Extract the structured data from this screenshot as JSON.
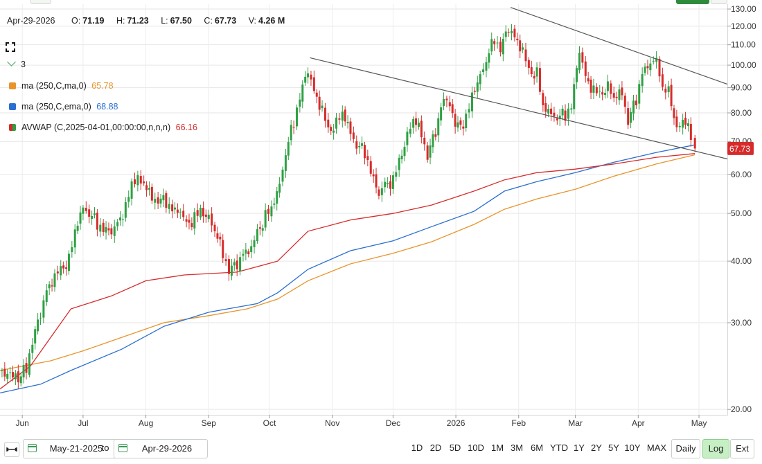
{
  "ohlc": {
    "date": "Apr-29-2026",
    "open_label": "O:",
    "open": "71.19",
    "high_label": "H:",
    "high": "71.23",
    "low_label": "L:",
    "low": "67.50",
    "close_label": "C:",
    "close": "67.73",
    "volume_label": "V:",
    "volume": "4.26 M"
  },
  "collapse_count": "3",
  "legend": [
    {
      "label": "ma (250,C,ma,0)",
      "value": "65.78",
      "color": "#e8942a"
    },
    {
      "label": "ma (250,C,ema,0)",
      "value": "68.88",
      "color": "#2a6fd1"
    },
    {
      "label": "AVWAP (C,2025-04-01,00:00:00,n,n,n)",
      "value": "66.16",
      "color": "#d62b2b",
      "color2": "#2ea043"
    }
  ],
  "price_tag": "67.73",
  "bottom": {
    "from_date": "May-21-2025",
    "to_label": "to",
    "to_date": "Apr-29-2026",
    "ranges": [
      "1D",
      "2D",
      "5D",
      "10D",
      "1M",
      "3M",
      "6M",
      "YTD",
      "1Y",
      "2Y",
      "5Y",
      "10Y",
      "MAX"
    ],
    "interval": "Daily",
    "log_label": "Log",
    "ext_label": "Ext"
  },
  "chart_data": {
    "type": "candlestick",
    "scale": "log",
    "ylim": [
      19.5,
      133
    ],
    "y_ticks": [
      "130.00",
      "120.00",
      "110.00",
      "100.00",
      "90.00",
      "80.00",
      "70.00",
      "60.00",
      "50.00",
      "40.00",
      "30.00",
      "20.00"
    ],
    "x_ticks": [
      "Jun",
      "Jul",
      "Aug",
      "Sep",
      "Oct",
      "Nov",
      "Dec",
      "2026",
      "Feb",
      "Mar",
      "Apr",
      "May"
    ],
    "x_range": [
      "2025-05-21",
      "2026-05-15"
    ],
    "up_color": "#2ea043",
    "down_color": "#d62b2b",
    "closes": [
      [
        "2025-05-22",
        24.0
      ],
      [
        "2025-05-26",
        24.3
      ],
      [
        "2025-05-30",
        23.5
      ],
      [
        "2025-06-03",
        24.5
      ],
      [
        "2025-06-06",
        27.5
      ],
      [
        "2025-06-10",
        30.5
      ],
      [
        "2025-06-13",
        34.0
      ],
      [
        "2025-06-17",
        36.5
      ],
      [
        "2025-06-20",
        38.0
      ],
      [
        "2025-06-24",
        41.0
      ],
      [
        "2025-06-27",
        47.0
      ],
      [
        "2025-07-01",
        53.0
      ],
      [
        "2025-07-04",
        51.0
      ],
      [
        "2025-07-08",
        47.5
      ],
      [
        "2025-07-11",
        46.0
      ],
      [
        "2025-07-15",
        44.5
      ],
      [
        "2025-07-18",
        46.5
      ],
      [
        "2025-07-22",
        51.0
      ],
      [
        "2025-07-25",
        57.0
      ],
      [
        "2025-07-28",
        60.0
      ],
      [
        "2025-07-31",
        59.0
      ],
      [
        "2025-08-04",
        55.0
      ],
      [
        "2025-08-07",
        54.0
      ],
      [
        "2025-08-11",
        52.0
      ],
      [
        "2025-08-14",
        50.0
      ],
      [
        "2025-08-18",
        49.0
      ],
      [
        "2025-08-21",
        46.5
      ],
      [
        "2025-08-25",
        49.0
      ],
      [
        "2025-08-28",
        51.0
      ],
      [
        "2025-09-01",
        50.5
      ],
      [
        "2025-09-04",
        47.5
      ],
      [
        "2025-09-08",
        42.0
      ],
      [
        "2025-09-11",
        38.5
      ],
      [
        "2025-09-15",
        38.5
      ],
      [
        "2025-09-18",
        40.5
      ],
      [
        "2025-09-22",
        41.5
      ],
      [
        "2025-09-25",
        45.0
      ],
      [
        "2025-09-29",
        50.0
      ],
      [
        "2025-10-02",
        52.0
      ],
      [
        "2025-10-06",
        59.0
      ],
      [
        "2025-10-09",
        68.0
      ],
      [
        "2025-10-13",
        77.0
      ],
      [
        "2025-10-16",
        86.0
      ],
      [
        "2025-10-20",
        95.0
      ],
      [
        "2025-10-23",
        86.0
      ],
      [
        "2025-10-27",
        80.0
      ],
      [
        "2025-10-30",
        73.0
      ],
      [
        "2025-11-03",
        78.0
      ],
      [
        "2025-11-06",
        82.0
      ],
      [
        "2025-11-10",
        75.0
      ],
      [
        "2025-11-13",
        70.0
      ],
      [
        "2025-11-17",
        66.0
      ],
      [
        "2025-11-20",
        60.0
      ],
      [
        "2025-11-24",
        53.0
      ],
      [
        "2025-11-27",
        56.0
      ],
      [
        "2025-12-01",
        58.0
      ],
      [
        "2025-12-04",
        64.0
      ],
      [
        "2025-12-08",
        74.0
      ],
      [
        "2025-12-11",
        80.0
      ],
      [
        "2025-12-15",
        74.0
      ],
      [
        "2025-12-18",
        66.0
      ],
      [
        "2025-12-22",
        72.0
      ],
      [
        "2025-12-26",
        84.0
      ],
      [
        "2025-12-29",
        80.0
      ],
      [
        "2026-01-02",
        74.0
      ],
      [
        "2026-01-06",
        78.0
      ],
      [
        "2026-01-09",
        88.0
      ],
      [
        "2026-01-13",
        98.0
      ],
      [
        "2026-01-16",
        105.0
      ],
      [
        "2026-01-20",
        114.0
      ],
      [
        "2026-01-23",
        108.0
      ],
      [
        "2026-01-27",
        116.0
      ],
      [
        "2026-01-30",
        111.0
      ],
      [
        "2026-02-03",
        105.0
      ],
      [
        "2026-02-06",
        96.0
      ],
      [
        "2026-02-10",
        98.0
      ],
      [
        "2026-02-13",
        84.0
      ],
      [
        "2026-02-17",
        82.0
      ],
      [
        "2026-02-20",
        80.0
      ],
      [
        "2026-02-24",
        79.0
      ],
      [
        "2026-02-27",
        82.0
      ],
      [
        "2026-03-03",
        104.0
      ],
      [
        "2026-03-06",
        92.0
      ],
      [
        "2026-03-10",
        88.0
      ],
      [
        "2026-03-13",
        87.0
      ],
      [
        "2026-03-17",
        93.0
      ],
      [
        "2026-03-20",
        88.0
      ],
      [
        "2026-03-24",
        90.0
      ],
      [
        "2026-03-27",
        78.0
      ],
      [
        "2026-03-31",
        84.0
      ],
      [
        "2026-04-03",
        95.0
      ],
      [
        "2026-04-07",
        98.0
      ],
      [
        "2026-04-10",
        100.0
      ],
      [
        "2026-04-13",
        88.0
      ],
      [
        "2026-04-16",
        90.0
      ],
      [
        "2026-04-20",
        76.0
      ],
      [
        "2026-04-23",
        80.0
      ],
      [
        "2026-04-27",
        73.0
      ],
      [
        "2026-04-29",
        67.73
      ]
    ],
    "series": [
      {
        "name": "ma (250,C,ma,0)",
        "color": "#e8942a",
        "values": [
          [
            "2025-05-21",
            24.0
          ],
          [
            "2025-06-15",
            25.1
          ],
          [
            "2025-07-01",
            26.3
          ],
          [
            "2025-07-20",
            28.0
          ],
          [
            "2025-08-10",
            30.0
          ],
          [
            "2025-09-01",
            31.0
          ],
          [
            "2025-09-20",
            32.0
          ],
          [
            "2025-10-05",
            33.5
          ],
          [
            "2025-10-20",
            36.5
          ],
          [
            "2025-11-10",
            39.5
          ],
          [
            "2025-12-01",
            41.5
          ],
          [
            "2025-12-20",
            43.8
          ],
          [
            "2026-01-10",
            47.5
          ],
          [
            "2026-01-25",
            51.0
          ],
          [
            "2026-02-10",
            53.5
          ],
          [
            "2026-03-01",
            56.0
          ],
          [
            "2026-03-20",
            59.5
          ],
          [
            "2026-04-10",
            63.0
          ],
          [
            "2026-04-29",
            65.78
          ]
        ]
      },
      {
        "name": "ma (250,C,ema,0)",
        "color": "#2a6fd1",
        "values": [
          [
            "2025-05-21",
            21.6
          ],
          [
            "2025-06-10",
            22.5
          ],
          [
            "2025-06-25",
            24.0
          ],
          [
            "2025-07-20",
            26.5
          ],
          [
            "2025-08-10",
            29.5
          ],
          [
            "2025-09-01",
            31.5
          ],
          [
            "2025-09-25",
            32.8
          ],
          [
            "2025-10-05",
            34.5
          ],
          [
            "2025-10-20",
            38.5
          ],
          [
            "2025-11-10",
            42.0
          ],
          [
            "2025-12-01",
            44.0
          ],
          [
            "2025-12-20",
            47.0
          ],
          [
            "2026-01-10",
            50.5
          ],
          [
            "2026-01-25",
            55.5
          ],
          [
            "2026-02-10",
            58.0
          ],
          [
            "2026-03-01",
            60.5
          ],
          [
            "2026-03-20",
            63.5
          ],
          [
            "2026-04-10",
            66.5
          ],
          [
            "2026-04-29",
            68.88
          ]
        ]
      },
      {
        "name": "AVWAP (C,2025-04-01,00:00:00,n,n,n)",
        "color": "#d62b2b",
        "values": [
          [
            "2025-05-21",
            22.0
          ],
          [
            "2025-06-05",
            24.5
          ],
          [
            "2025-06-25",
            32.0
          ],
          [
            "2025-07-15",
            34.0
          ],
          [
            "2025-08-01",
            36.5
          ],
          [
            "2025-08-20",
            37.5
          ],
          [
            "2025-09-15",
            38.0
          ],
          [
            "2025-10-05",
            40.0
          ],
          [
            "2025-10-20",
            46.0
          ],
          [
            "2025-11-10",
            48.5
          ],
          [
            "2025-12-01",
            50.0
          ],
          [
            "2025-12-20",
            52.0
          ],
          [
            "2026-01-10",
            55.5
          ],
          [
            "2026-01-25",
            58.5
          ],
          [
            "2026-02-10",
            60.5
          ],
          [
            "2026-03-01",
            61.5
          ],
          [
            "2026-03-20",
            63.0
          ],
          [
            "2026-04-10",
            65.0
          ],
          [
            "2026-04-29",
            66.16
          ]
        ]
      }
    ],
    "trendlines": [
      {
        "from": [
          "2026-01-28",
          131.0
        ],
        "to": [
          "2026-05-15",
          91.5
        ]
      },
      {
        "from": [
          "2025-10-21",
          103.5
        ],
        "to": [
          "2026-05-15",
          64.5
        ]
      }
    ]
  }
}
